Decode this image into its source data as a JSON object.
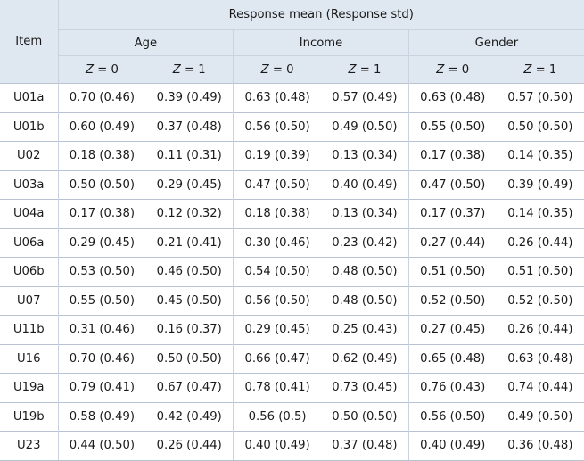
{
  "header": {
    "item_label": "Item",
    "response_label": "Response mean (Response std)",
    "groups": [
      "Age",
      "Income",
      "Gender"
    ],
    "z_var": "Z",
    "z_levels": [
      "= 0",
      "= 1"
    ]
  },
  "rows": [
    {
      "item": "U01a",
      "values": [
        "0.70 (0.46)",
        "0.39 (0.49)",
        "0.63 (0.48)",
        "0.57 (0.49)",
        "0.63 (0.48)",
        "0.57 (0.50)"
      ]
    },
    {
      "item": "U01b",
      "values": [
        "0.60 (0.49)",
        "0.37 (0.48)",
        "0.56 (0.50)",
        "0.49 (0.50)",
        "0.55 (0.50)",
        "0.50 (0.50)"
      ]
    },
    {
      "item": "U02",
      "values": [
        "0.18 (0.38)",
        "0.11 (0.31)",
        "0.19 (0.39)",
        "0.13 (0.34)",
        "0.17 (0.38)",
        "0.14 (0.35)"
      ]
    },
    {
      "item": "U03a",
      "values": [
        "0.50 (0.50)",
        "0.29 (0.45)",
        "0.47 (0.50)",
        "0.40 (0.49)",
        "0.47 (0.50)",
        "0.39 (0.49)"
      ]
    },
    {
      "item": "U04a",
      "values": [
        "0.17 (0.38)",
        "0.12 (0.32)",
        "0.18 (0.38)",
        "0.13 (0.34)",
        "0.17 (0.37)",
        "0.14 (0.35)"
      ]
    },
    {
      "item": "U06a",
      "values": [
        "0.29 (0.45)",
        "0.21 (0.41)",
        "0.30 (0.46)",
        "0.23 (0.42)",
        "0.27 (0.44)",
        "0.26 (0.44)"
      ]
    },
    {
      "item": "U06b",
      "values": [
        "0.53 (0.50)",
        "0.46 (0.50)",
        "0.54 (0.50)",
        "0.48 (0.50)",
        "0.51 (0.50)",
        "0.51 (0.50)"
      ]
    },
    {
      "item": "U07",
      "values": [
        "0.55 (0.50)",
        "0.45 (0.50)",
        "0.56 (0.50)",
        "0.48 (0.50)",
        "0.52 (0.50)",
        "0.52 (0.50)"
      ]
    },
    {
      "item": "U11b",
      "values": [
        "0.31 (0.46)",
        "0.16 (0.37)",
        "0.29 (0.45)",
        "0.25 (0.43)",
        "0.27 (0.45)",
        "0.26 (0.44)"
      ]
    },
    {
      "item": "U16",
      "values": [
        "0.70 (0.46)",
        "0.50 (0.50)",
        "0.66 (0.47)",
        "0.62 (0.49)",
        "0.65 (0.48)",
        "0.63 (0.48)"
      ]
    },
    {
      "item": "U19a",
      "values": [
        "0.79 (0.41)",
        "0.67 (0.47)",
        "0.78 (0.41)",
        "0.73 (0.45)",
        "0.76 (0.43)",
        "0.74 (0.44)"
      ]
    },
    {
      "item": "U19b",
      "values": [
        "0.58 (0.49)",
        "0.42 (0.49)",
        "0.56 (0.5)",
        "0.50 (0.50)",
        "0.56 (0.50)",
        "0.49 (0.50)"
      ]
    },
    {
      "item": "U23",
      "values": [
        "0.44 (0.50)",
        "0.26 (0.44)",
        "0.40 (0.49)",
        "0.37 (0.48)",
        "0.40 (0.49)",
        "0.36 (0.48)"
      ]
    }
  ]
}
